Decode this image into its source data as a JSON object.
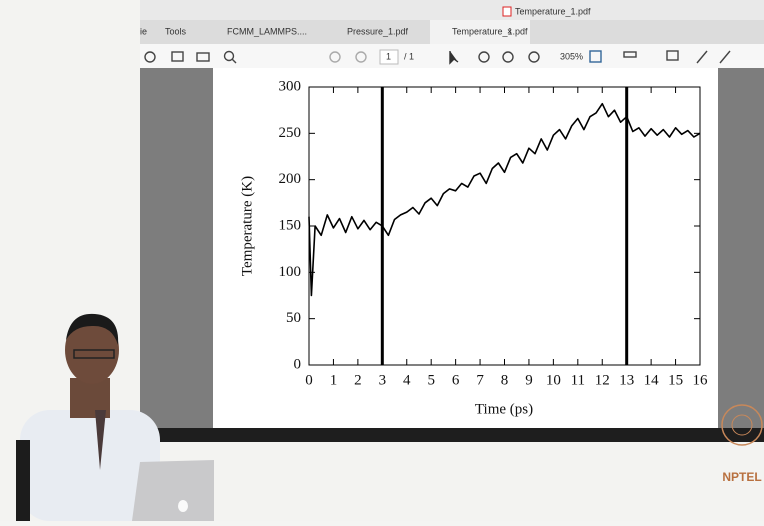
{
  "window": {
    "title": "Temperature_1.pdf",
    "tabs": [
      "ie",
      "Tools",
      "FCMM_LAMMPS....",
      "Pressure_1.pdf",
      "Temperature_1.pdf"
    ],
    "close": "×",
    "page_number": "1",
    "page_total": "/ 1",
    "zoom": "305%"
  },
  "chart_data": {
    "type": "line",
    "xlabel": "Time (ps)",
    "ylabel": "Temperature (K)",
    "color": "#000000",
    "x": [
      0,
      0.1,
      0.25,
      0.5,
      0.75,
      1,
      1.25,
      1.5,
      1.75,
      2,
      2.25,
      2.5,
      2.75,
      3,
      3.25,
      3.5,
      3.75,
      4,
      4.25,
      4.5,
      4.75,
      5,
      5.25,
      5.5,
      5.75,
      6,
      6.25,
      6.5,
      6.75,
      7,
      7.25,
      7.5,
      7.75,
      8,
      8.25,
      8.5,
      8.75,
      9,
      9.25,
      9.5,
      9.75,
      10,
      10.25,
      10.5,
      10.75,
      11,
      11.25,
      11.5,
      11.75,
      12,
      12.25,
      12.5,
      12.75,
      13,
      13.25,
      13.5,
      13.75,
      14,
      14.25,
      14.5,
      14.75,
      15,
      15.25,
      15.5,
      15.75,
      16
    ],
    "values": [
      160,
      75,
      150,
      140,
      162,
      148,
      158,
      143,
      160,
      147,
      156,
      146,
      154,
      150,
      140,
      157,
      162,
      165,
      170,
      163,
      175,
      180,
      172,
      185,
      190,
      188,
      196,
      192,
      204,
      207,
      196,
      212,
      218,
      208,
      224,
      228,
      218,
      234,
      228,
      244,
      232,
      248,
      254,
      244,
      258,
      266,
      254,
      268,
      272,
      282,
      268,
      275,
      262,
      268,
      252,
      256,
      247,
      255,
      248,
      254,
      246,
      256,
      249,
      253,
      246,
      250
    ],
    "vlines": [
      3,
      13
    ],
    "xlim": [
      0,
      16
    ],
    "ylim": [
      0,
      300
    ],
    "xticks": [
      0,
      1,
      2,
      3,
      4,
      5,
      6,
      7,
      8,
      9,
      10,
      11,
      12,
      13,
      14,
      15,
      16
    ],
    "yticks": [
      0,
      50,
      100,
      150,
      200,
      250,
      300
    ]
  },
  "logo": "NPTEL"
}
